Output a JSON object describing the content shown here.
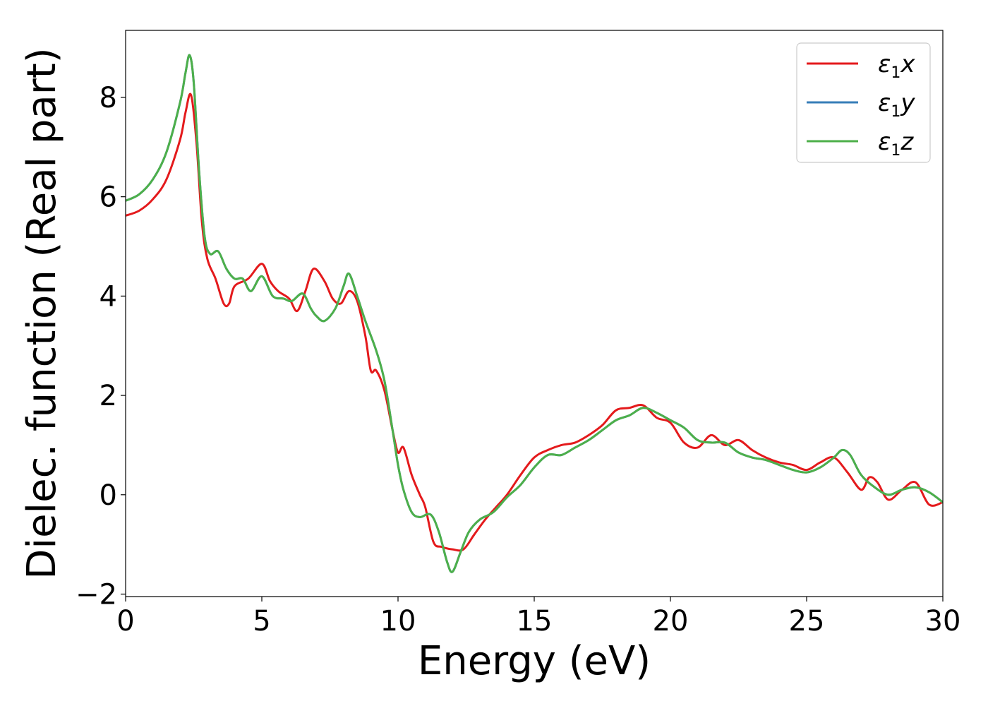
{
  "chart_data": {
    "type": "line",
    "xlabel": "Energy (eV)",
    "ylabel": "Dielec. function (Real part)",
    "xlim": [
      0,
      30
    ],
    "ylim": [
      -2.05,
      9.35
    ],
    "xticks": [
      0,
      5,
      10,
      15,
      20,
      25,
      30
    ],
    "xtick_labels": [
      "0",
      "5",
      "10",
      "15",
      "20",
      "25",
      "30"
    ],
    "yticks": [
      -2,
      0,
      2,
      4,
      6,
      8
    ],
    "ytick_labels": [
      "−2",
      "0",
      "2",
      "4",
      "6",
      "8"
    ],
    "grid": false,
    "legend_position": "top-right",
    "series": [
      {
        "name": "ε1x",
        "legend": {
          "symbol": "ε",
          "sub": "1",
          "axis": "x"
        },
        "color": "#e41a1c",
        "x": [
          0,
          0.5,
          1.0,
          1.5,
          2.0,
          2.2,
          2.4,
          2.6,
          2.8,
          3.0,
          3.3,
          3.6,
          3.8,
          4.0,
          4.5,
          5.0,
          5.3,
          5.6,
          6.0,
          6.3,
          6.6,
          6.9,
          7.3,
          7.6,
          7.9,
          8.2,
          8.5,
          8.8,
          9.0,
          9.2,
          9.5,
          9.8,
          10.0,
          10.2,
          10.5,
          10.8,
          11.0,
          11.3,
          11.6,
          12.0,
          12.4,
          12.8,
          13.2,
          13.6,
          14.0,
          14.5,
          15.0,
          15.5,
          16.0,
          16.5,
          17.0,
          17.5,
          18.0,
          18.5,
          19.0,
          19.5,
          20.0,
          20.5,
          21.0,
          21.5,
          22.0,
          22.5,
          23.0,
          23.5,
          24.0,
          24.5,
          25.0,
          25.5,
          26.0,
          26.5,
          27.0,
          27.3,
          27.6,
          28.0,
          28.5,
          29.0,
          29.5,
          30.0
        ],
        "y": [
          5.62,
          5.72,
          5.95,
          6.35,
          7.15,
          7.7,
          8.05,
          7.1,
          5.5,
          4.75,
          4.35,
          3.85,
          3.85,
          4.2,
          4.35,
          4.65,
          4.3,
          4.1,
          3.95,
          3.7,
          4.1,
          4.55,
          4.3,
          3.95,
          3.85,
          4.1,
          3.9,
          3.2,
          2.5,
          2.5,
          2.1,
          1.3,
          0.85,
          0.95,
          0.4,
          0.0,
          -0.25,
          -0.95,
          -1.05,
          -1.1,
          -1.1,
          -0.8,
          -0.5,
          -0.25,
          0.0,
          0.4,
          0.75,
          0.9,
          1.0,
          1.05,
          1.2,
          1.4,
          1.7,
          1.75,
          1.8,
          1.55,
          1.45,
          1.05,
          0.95,
          1.2,
          1.0,
          1.1,
          0.9,
          0.75,
          0.65,
          0.6,
          0.5,
          0.65,
          0.75,
          0.45,
          0.1,
          0.35,
          0.25,
          -0.1,
          0.1,
          0.25,
          -0.2,
          -0.15
        ]
      },
      {
        "name": "ε1y",
        "legend": {
          "symbol": "ε",
          "sub": "1",
          "axis": "y"
        },
        "color": "#377eb8",
        "x": [
          0,
          0.5,
          1.0,
          1.5,
          2.0,
          2.2,
          2.35,
          2.5,
          2.7,
          2.9,
          3.1,
          3.4,
          3.7,
          4.0,
          4.3,
          4.6,
          5.0,
          5.4,
          5.8,
          6.1,
          6.5,
          6.8,
          7.0,
          7.3,
          7.7,
          8.0,
          8.2,
          8.5,
          8.8,
          9.2,
          9.5,
          9.8,
          10.0,
          10.2,
          10.5,
          10.8,
          11.2,
          11.5,
          11.8,
          12.0,
          12.3,
          12.6,
          13.0,
          13.5,
          14.0,
          14.5,
          15.0,
          15.5,
          16.0,
          16.5,
          17.0,
          17.5,
          18.0,
          18.5,
          19.0,
          19.5,
          20.0,
          20.5,
          21.0,
          21.5,
          22.0,
          22.5,
          23.0,
          23.5,
          24.0,
          24.5,
          25.0,
          25.5,
          26.0,
          26.3,
          26.6,
          27.0,
          27.5,
          28.0,
          28.5,
          29.0,
          29.5,
          30.0
        ],
        "y": [
          5.92,
          6.05,
          6.35,
          6.9,
          7.9,
          8.5,
          8.85,
          8.3,
          6.5,
          5.2,
          4.85,
          4.9,
          4.55,
          4.35,
          4.35,
          4.1,
          4.4,
          4.0,
          3.95,
          3.9,
          4.05,
          3.75,
          3.6,
          3.5,
          3.75,
          4.2,
          4.45,
          4.0,
          3.5,
          2.9,
          2.3,
          1.3,
          0.6,
          0.1,
          -0.35,
          -0.45,
          -0.4,
          -0.75,
          -1.35,
          -1.55,
          -1.15,
          -0.75,
          -0.5,
          -0.35,
          -0.05,
          0.2,
          0.55,
          0.8,
          0.8,
          0.95,
          1.1,
          1.3,
          1.5,
          1.6,
          1.75,
          1.65,
          1.5,
          1.35,
          1.1,
          1.05,
          1.05,
          0.85,
          0.75,
          0.7,
          0.6,
          0.5,
          0.45,
          0.55,
          0.75,
          0.9,
          0.8,
          0.4,
          0.15,
          0.0,
          0.1,
          0.15,
          0.05,
          -0.15
        ]
      },
      {
        "name": "ε1z",
        "legend": {
          "symbol": "ε",
          "sub": "1",
          "axis": "z"
        },
        "color": "#4daf4a",
        "x": [
          0,
          0.5,
          1.0,
          1.5,
          2.0,
          2.2,
          2.35,
          2.5,
          2.7,
          2.9,
          3.1,
          3.4,
          3.7,
          4.0,
          4.3,
          4.6,
          5.0,
          5.4,
          5.8,
          6.1,
          6.5,
          6.8,
          7.0,
          7.3,
          7.7,
          8.0,
          8.2,
          8.5,
          8.8,
          9.2,
          9.5,
          9.8,
          10.0,
          10.2,
          10.5,
          10.8,
          11.2,
          11.5,
          11.8,
          12.0,
          12.3,
          12.6,
          13.0,
          13.5,
          14.0,
          14.5,
          15.0,
          15.5,
          16.0,
          16.5,
          17.0,
          17.5,
          18.0,
          18.5,
          19.0,
          19.5,
          20.0,
          20.5,
          21.0,
          21.5,
          22.0,
          22.5,
          23.0,
          23.5,
          24.0,
          24.5,
          25.0,
          25.5,
          26.0,
          26.3,
          26.6,
          27.0,
          27.5,
          28.0,
          28.5,
          29.0,
          29.5,
          30.0
        ],
        "y": [
          5.92,
          6.05,
          6.35,
          6.9,
          7.9,
          8.5,
          8.85,
          8.3,
          6.5,
          5.2,
          4.85,
          4.9,
          4.55,
          4.35,
          4.35,
          4.1,
          4.4,
          4.0,
          3.95,
          3.9,
          4.05,
          3.75,
          3.6,
          3.5,
          3.75,
          4.2,
          4.45,
          4.0,
          3.5,
          2.9,
          2.3,
          1.3,
          0.6,
          0.1,
          -0.35,
          -0.45,
          -0.4,
          -0.75,
          -1.35,
          -1.55,
          -1.15,
          -0.75,
          -0.5,
          -0.35,
          -0.05,
          0.2,
          0.55,
          0.8,
          0.8,
          0.95,
          1.1,
          1.3,
          1.5,
          1.6,
          1.75,
          1.65,
          1.5,
          1.35,
          1.1,
          1.05,
          1.05,
          0.85,
          0.75,
          0.7,
          0.6,
          0.5,
          0.45,
          0.55,
          0.75,
          0.9,
          0.8,
          0.4,
          0.15,
          0.0,
          0.1,
          0.15,
          0.05,
          -0.15
        ]
      }
    ]
  }
}
